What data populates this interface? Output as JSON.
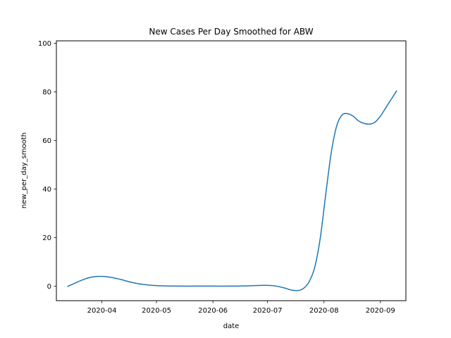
{
  "chart_data": {
    "type": "line",
    "title": "New Cases Per Day Smoothed for ABW",
    "xlabel": "date",
    "ylabel": "new_per_day_smooth",
    "xlim": [
      "2020-03-07",
      "2020-09-15"
    ],
    "ylim": [
      -6,
      101
    ],
    "xticks": [
      "2020-04",
      "2020-05",
      "2020-06",
      "2020-07",
      "2020-08",
      "2020-09"
    ],
    "xtick_dates": [
      "2020-04-01",
      "2020-05-01",
      "2020-06-01",
      "2020-07-01",
      "2020-08-01",
      "2020-09-01"
    ],
    "yticks": [
      0,
      20,
      40,
      60,
      80,
      100
    ],
    "grid": false,
    "legend": "none",
    "series": [
      {
        "color": "#1f77b4",
        "x": [
          "2020-03-13",
          "2020-03-18",
          "2020-03-23",
          "2020-03-27",
          "2020-04-01",
          "2020-04-06",
          "2020-04-11",
          "2020-04-16",
          "2020-04-21",
          "2020-04-26",
          "2020-05-01",
          "2020-05-08",
          "2020-05-15",
          "2020-05-22",
          "2020-05-31",
          "2020-06-10",
          "2020-06-20",
          "2020-06-28",
          "2020-07-01",
          "2020-07-05",
          "2020-07-10",
          "2020-07-14",
          "2020-07-18",
          "2020-07-21",
          "2020-07-24",
          "2020-07-27",
          "2020-07-30",
          "2020-08-02",
          "2020-08-05",
          "2020-08-08",
          "2020-08-11",
          "2020-08-14",
          "2020-08-17",
          "2020-08-20",
          "2020-08-23",
          "2020-08-26",
          "2020-08-29",
          "2020-09-01",
          "2020-09-04",
          "2020-09-07",
          "2020-09-10"
        ],
        "y": [
          -0.2,
          1.5,
          3.0,
          3.8,
          4.0,
          3.6,
          2.8,
          1.8,
          1.0,
          0.5,
          0.2,
          0.05,
          0.0,
          0.0,
          0.0,
          0.0,
          0.1,
          0.3,
          0.3,
          0.1,
          -0.7,
          -1.6,
          -1.8,
          -0.8,
          2.0,
          8.0,
          20.0,
          38.0,
          55.0,
          66.0,
          70.5,
          71.0,
          70.0,
          68.0,
          67.0,
          66.7,
          67.5,
          70.0,
          73.5,
          77.0,
          80.5
        ]
      }
    ]
  }
}
